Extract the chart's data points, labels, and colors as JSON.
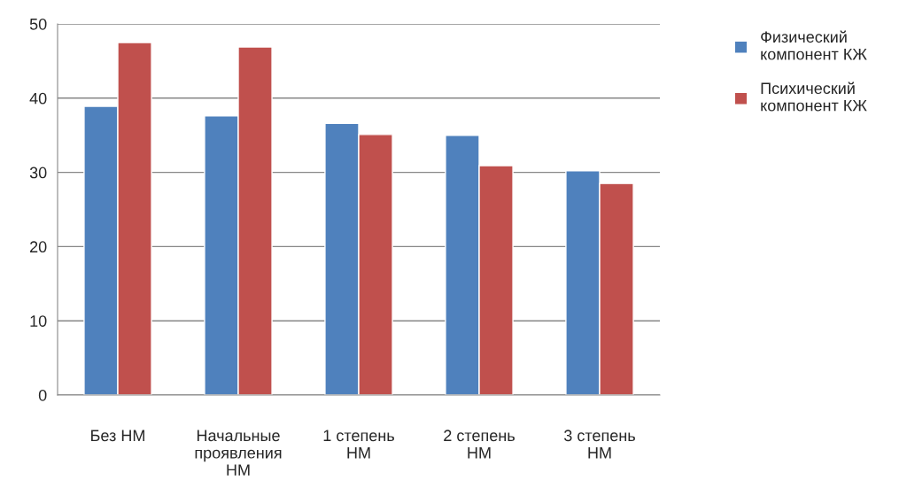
{
  "chart_data": {
    "type": "bar",
    "categories": [
      "Без НМ",
      "Начальные\nпроявления\nНМ",
      "1 степень\nНМ",
      "2 степень\nНМ",
      "3 степень\nНМ"
    ],
    "series": [
      {
        "name": "Физический\nкомпонент КЖ",
        "color": "#4f81bd",
        "values": [
          38.9,
          37.6,
          36.6,
          35.0,
          30.2
        ]
      },
      {
        "name": "Психический\nкомпонент КЖ",
        "color": "#c0504d",
        "values": [
          47.5,
          46.9,
          35.1,
          30.9,
          28.5
        ]
      }
    ],
    "ylim": [
      0,
      50
    ],
    "yticks": [
      0,
      10,
      20,
      30,
      40,
      50
    ],
    "grid": "y",
    "legend": "right"
  }
}
